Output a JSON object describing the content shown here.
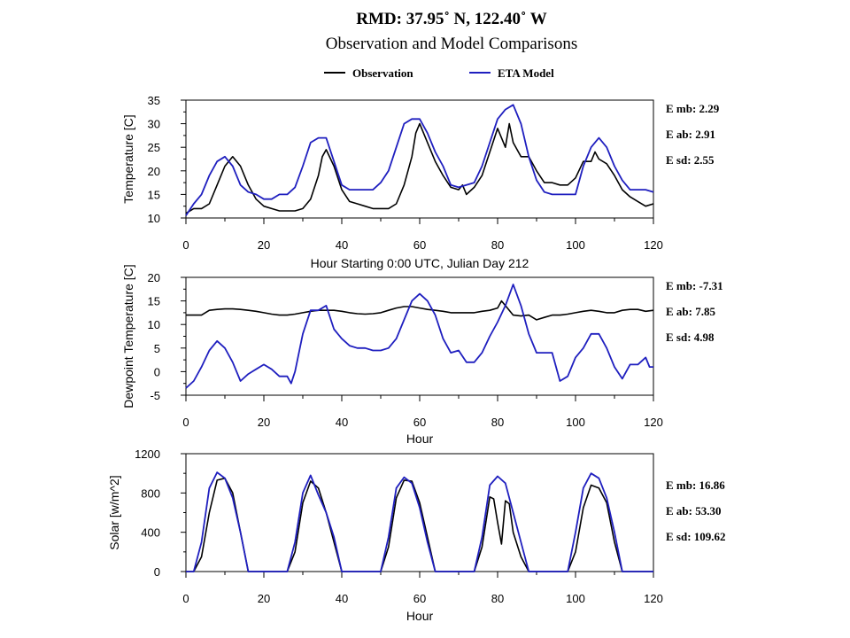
{
  "header": {
    "title": "RMD: 37.95˚ N, 122.40˚ W",
    "subtitle": "Observation and Model Comparisons"
  },
  "legend": {
    "items": [
      {
        "label": "Observation",
        "color": "#000000"
      },
      {
        "label": "ETA Model",
        "color": "#1f1fbf"
      }
    ]
  },
  "chart_data": [
    {
      "type": "line",
      "title": "",
      "xlabel": "Hour Starting 0:00 UTC, Julian Day 212",
      "ylabel": "Temperature [C]",
      "xlim": [
        0,
        120
      ],
      "ylim": [
        10,
        35
      ],
      "xticks": [
        0,
        20,
        40,
        60,
        80,
        100,
        120
      ],
      "yticks": [
        10,
        15,
        20,
        25,
        30,
        35
      ],
      "stats": [
        "E mb: 2.29",
        "E ab: 2.91",
        "E sd: 2.55"
      ],
      "series": [
        {
          "name": "Observation",
          "color": "#000000",
          "x": [
            0,
            2,
            4,
            6,
            8,
            10,
            12,
            14,
            16,
            18,
            20,
            22,
            24,
            26,
            28,
            30,
            32,
            34,
            35,
            36,
            38,
            40,
            42,
            44,
            46,
            48,
            50,
            52,
            54,
            56,
            58,
            59,
            60,
            62,
            64,
            66,
            68,
            70,
            71,
            72,
            74,
            76,
            78,
            80,
            82,
            83,
            84,
            86,
            88,
            90,
            92,
            94,
            96,
            98,
            100,
            102,
            104,
            105,
            106,
            108,
            110,
            112,
            114,
            116,
            118,
            120
          ],
          "y": [
            11,
            12,
            12,
            13,
            17,
            21,
            23,
            21,
            17,
            14,
            12.5,
            12,
            11.5,
            11.5,
            11.5,
            12,
            14,
            19,
            23,
            24.5,
            21,
            16,
            13.5,
            13,
            12.5,
            12,
            12,
            12,
            13,
            17,
            23,
            28,
            30,
            26,
            22,
            19,
            16.5,
            16,
            17,
            15,
            16.5,
            19,
            24,
            29,
            25,
            30,
            26,
            23,
            23,
            20,
            17.5,
            17.5,
            17,
            17,
            18.5,
            22,
            22,
            24,
            22.5,
            21.5,
            19,
            16,
            14.5,
            13.5,
            12.5,
            13
          ]
        },
        {
          "name": "ETA Model",
          "color": "#1f1fbf",
          "x": [
            0,
            2,
            4,
            6,
            8,
            10,
            12,
            14,
            16,
            18,
            20,
            22,
            24,
            26,
            28,
            30,
            32,
            34,
            36,
            38,
            40,
            42,
            44,
            46,
            48,
            50,
            52,
            54,
            56,
            58,
            60,
            62,
            64,
            66,
            68,
            70,
            72,
            74,
            76,
            78,
            80,
            82,
            84,
            86,
            88,
            90,
            92,
            94,
            96,
            98,
            100,
            102,
            104,
            106,
            108,
            110,
            112,
            114,
            116,
            118,
            120
          ],
          "y": [
            10.5,
            13,
            15,
            19,
            22,
            23,
            21,
            17,
            15.5,
            15,
            14,
            14,
            15,
            15,
            16.5,
            21,
            26,
            27,
            27,
            22,
            17,
            16,
            16,
            16,
            16,
            17.5,
            20,
            25,
            30,
            31,
            31,
            28,
            24,
            21,
            17,
            16.5,
            17,
            17.5,
            21,
            26,
            31,
            33,
            34,
            30,
            23,
            18,
            15.5,
            15,
            15,
            15,
            15,
            21,
            25,
            27,
            25,
            21,
            18,
            16,
            16,
            16,
            15.5
          ]
        }
      ]
    },
    {
      "type": "line",
      "title": "",
      "xlabel": "Hour",
      "ylabel": "Dewpoint Temperature [C]",
      "xlim": [
        0,
        120
      ],
      "ylim": [
        -5,
        20
      ],
      "xticks": [
        0,
        20,
        40,
        60,
        80,
        100,
        120
      ],
      "yticks": [
        -5,
        0,
        5,
        10,
        15,
        20
      ],
      "stats": [
        "E mb: -7.31",
        "E ab: 7.85",
        "E sd: 4.98"
      ],
      "series": [
        {
          "name": "Observation",
          "color": "#000000",
          "x": [
            0,
            4,
            6,
            8,
            10,
            12,
            14,
            16,
            18,
            20,
            22,
            24,
            26,
            28,
            30,
            32,
            34,
            36,
            38,
            40,
            42,
            44,
            46,
            48,
            50,
            52,
            54,
            56,
            58,
            60,
            62,
            64,
            66,
            68,
            70,
            72,
            74,
            76,
            78,
            80,
            81,
            82,
            84,
            86,
            88,
            90,
            92,
            94,
            96,
            98,
            100,
            102,
            104,
            106,
            108,
            110,
            112,
            114,
            116,
            118,
            120
          ],
          "y": [
            12,
            12,
            13,
            13.2,
            13.3,
            13.3,
            13.2,
            13,
            12.8,
            12.5,
            12.2,
            12,
            12,
            12.2,
            12.5,
            12.8,
            13,
            13,
            13,
            12.8,
            12.5,
            12.3,
            12.2,
            12.3,
            12.5,
            13,
            13.5,
            13.8,
            13.8,
            13.5,
            13.2,
            13,
            12.8,
            12.5,
            12.5,
            12.5,
            12.5,
            12.8,
            13,
            13.5,
            15,
            14,
            12,
            11.8,
            12,
            11,
            11.5,
            12,
            12,
            12.2,
            12.5,
            12.8,
            13,
            12.8,
            12.5,
            12.5,
            13,
            13.2,
            13.2,
            12.8,
            13
          ]
        },
        {
          "name": "ETA Model",
          "color": "#1f1fbf",
          "x": [
            0,
            2,
            4,
            6,
            8,
            10,
            12,
            14,
            16,
            17,
            18,
            20,
            22,
            24,
            26,
            27,
            28,
            30,
            32,
            34,
            36,
            38,
            40,
            42,
            44,
            46,
            48,
            50,
            52,
            54,
            56,
            58,
            60,
            62,
            64,
            66,
            68,
            70,
            72,
            74,
            76,
            78,
            80,
            82,
            84,
            86,
            88,
            90,
            92,
            94,
            96,
            98,
            100,
            102,
            104,
            106,
            108,
            110,
            112,
            114,
            116,
            118,
            119,
            120
          ],
          "y": [
            -3.5,
            -2,
            1,
            4.5,
            6.5,
            5,
            2,
            -2,
            -0.5,
            0,
            0.5,
            1.5,
            0.5,
            -1,
            -1,
            -2.5,
            0,
            8,
            13,
            13,
            14,
            9,
            7,
            5.5,
            5,
            5,
            4.5,
            4.5,
            5,
            7,
            11,
            15,
            16.5,
            15,
            12,
            7,
            4,
            4.5,
            2,
            2,
            4,
            7.5,
            10.5,
            14,
            18.5,
            14,
            8,
            4,
            4,
            4,
            -2,
            -1,
            3,
            5,
            8,
            8,
            5,
            1,
            -1.5,
            1.5,
            1.5,
            3,
            1,
            1
          ]
        }
      ]
    },
    {
      "type": "line",
      "title": "",
      "xlabel": "Hour",
      "ylabel": "Solar [w/m^2]",
      "xlim": [
        0,
        120
      ],
      "ylim": [
        0,
        1200
      ],
      "xticks": [
        0,
        20,
        40,
        60,
        80,
        100,
        120
      ],
      "yticks": [
        0,
        400,
        800,
        1200
      ],
      "stats": [
        "E mb: 16.86",
        "E ab: 53.30",
        "E sd: 109.62"
      ],
      "series": [
        {
          "name": "Observation",
          "color": "#000000",
          "x": [
            0,
            2,
            4,
            6,
            8,
            10,
            12,
            14,
            16,
            24,
            26,
            28,
            30,
            32,
            34,
            36,
            38,
            40,
            48,
            50,
            52,
            54,
            56,
            58,
            60,
            62,
            64,
            72,
            74,
            76,
            78,
            79,
            80,
            81,
            82,
            83,
            84,
            86,
            88,
            96,
            98,
            100,
            102,
            104,
            106,
            108,
            110,
            112,
            120
          ],
          "y": [
            0,
            0,
            150,
            600,
            930,
            950,
            800,
            400,
            0,
            0,
            0,
            200,
            700,
            920,
            850,
            600,
            300,
            0,
            0,
            0,
            250,
            750,
            930,
            920,
            700,
            350,
            0,
            0,
            0,
            250,
            760,
            740,
            500,
            280,
            720,
            690,
            400,
            150,
            0,
            0,
            0,
            200,
            650,
            880,
            850,
            700,
            300,
            0,
            0
          ]
        },
        {
          "name": "ETA Model",
          "color": "#1f1fbf",
          "x": [
            0,
            2,
            4,
            6,
            8,
            10,
            12,
            14,
            16,
            24,
            26,
            28,
            30,
            32,
            34,
            36,
            38,
            40,
            48,
            50,
            52,
            54,
            56,
            58,
            60,
            62,
            64,
            72,
            74,
            76,
            78,
            80,
            82,
            84,
            86,
            88,
            96,
            98,
            100,
            102,
            104,
            106,
            108,
            110,
            112,
            120
          ],
          "y": [
            0,
            0,
            300,
            850,
            1010,
            950,
            750,
            400,
            0,
            0,
            0,
            300,
            800,
            980,
            780,
            600,
            350,
            0,
            0,
            0,
            350,
            850,
            960,
            900,
            650,
            300,
            0,
            0,
            0,
            350,
            880,
            970,
            900,
            600,
            300,
            0,
            0,
            0,
            400,
            850,
            1000,
            950,
            750,
            400,
            0,
            0
          ]
        }
      ]
    }
  ]
}
